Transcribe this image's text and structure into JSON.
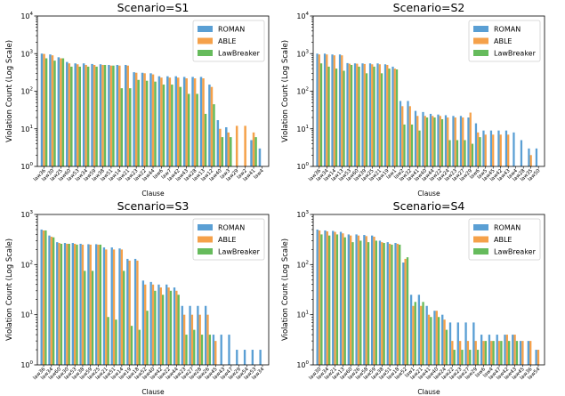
{
  "colors": {
    "ROMAN": "#5a9fd4",
    "ABLE": "#f5a14a",
    "LawBreaker": "#66bb5c"
  },
  "chart_data": [
    {
      "type": "bar",
      "title": "Scenario=S1",
      "xlabel": "Clause",
      "ylabel": "Violation Count (Log Scale)",
      "yscale": "log",
      "ylim": [
        1,
        10000
      ],
      "yticks": [
        "10^0",
        "10^1",
        "10^2",
        "10^3",
        "10^4"
      ],
      "legend": {
        "position": "top-right",
        "entries": [
          "ROMAN",
          "ABLE",
          "LawBreaker"
        ]
      },
      "categories": [
        "law36",
        "law30",
        "law25",
        "law60",
        "law53",
        "law34",
        "law59",
        "law38",
        "law51",
        "law14",
        "law21",
        "law23",
        "law22",
        "law44",
        "law6",
        "law7",
        "law42",
        "law43",
        "law28",
        "law13",
        "law12",
        "law40",
        "law3",
        "law29",
        "law2",
        "law41",
        "law4"
      ],
      "series": [
        {
          "name": "ROMAN",
          "values": [
            1000,
            950,
            800,
            600,
            550,
            550,
            530,
            520,
            500,
            500,
            500,
            320,
            310,
            300,
            250,
            250,
            250,
            240,
            240,
            240,
            150,
            17,
            11,
            1,
            1,
            5,
            3
          ]
        },
        {
          "name": "ABLE",
          "values": [
            980,
            900,
            750,
            550,
            520,
            500,
            500,
            500,
            480,
            480,
            480,
            310,
            300,
            280,
            230,
            230,
            230,
            220,
            220,
            220,
            130,
            10,
            8,
            12,
            12,
            8,
            1
          ]
        },
        {
          "name": "LawBreaker",
          "values": [
            750,
            650,
            750,
            450,
            450,
            450,
            450,
            500,
            480,
            120,
            120,
            200,
            190,
            180,
            150,
            150,
            130,
            85,
            85,
            25,
            45,
            6,
            6,
            1,
            1,
            6,
            1
          ]
        }
      ]
    },
    {
      "type": "bar",
      "title": "Scenario=S2",
      "xlabel": "Clause",
      "ylabel": "Violation Count (Log Scale)",
      "yscale": "log",
      "ylim": [
        1,
        10000
      ],
      "yticks": [
        "10^0",
        "10^1",
        "10^2",
        "10^3",
        "10^4"
      ],
      "legend": {
        "position": "top-right",
        "entries": [
          "ROMAN",
          "ABLE",
          "LawBreaker"
        ]
      },
      "categories": [
        "law36",
        "law34",
        "law14",
        "law13",
        "law53",
        "law60",
        "law39",
        "law25",
        "law21",
        "law19",
        "law1",
        "law2",
        "law32",
        "law41",
        "law40",
        "law44",
        "law22",
        "law24",
        "law23",
        "law27",
        "law29",
        "law6",
        "law5",
        "law45",
        "law42",
        "law43",
        "law4",
        "law28",
        "law35",
        "law50"
      ],
      "series": [
        {
          "name": "ROMAN",
          "values": [
            1000,
            1000,
            950,
            950,
            560,
            550,
            550,
            550,
            550,
            520,
            450,
            55,
            55,
            30,
            28,
            25,
            24,
            23,
            22,
            22,
            20,
            14,
            9,
            9,
            9,
            9,
            8,
            5,
            3,
            3
          ]
        },
        {
          "name": "ABLE",
          "values": [
            950,
            950,
            900,
            900,
            540,
            540,
            530,
            520,
            520,
            500,
            400,
            40,
            40,
            22,
            22,
            22,
            22,
            20,
            20,
            20,
            27,
            8,
            7,
            7,
            7,
            7,
            1,
            1,
            2,
            1
          ]
        },
        {
          "name": "LawBreaker",
          "values": [
            550,
            450,
            400,
            350,
            500,
            450,
            300,
            450,
            300,
            400,
            380,
            13,
            13,
            9,
            20,
            20,
            18,
            5,
            5,
            5,
            4,
            6,
            1,
            1,
            1,
            1,
            1,
            1,
            1,
            1
          ]
        }
      ]
    },
    {
      "type": "bar",
      "title": "Scenario=S3",
      "xlabel": "Clause",
      "ylabel": "Violation Count (Log Scale)",
      "yscale": "log",
      "ylim": [
        1,
        1000
      ],
      "yticks": [
        "10^0",
        "10^1",
        "10^2",
        "10^3"
      ],
      "legend": {
        "position": "top-right",
        "entries": [
          "ROMAN",
          "ABLE",
          "LawBreaker"
        ]
      },
      "categories": [
        "law36",
        "law34",
        "law60",
        "law30",
        "law53",
        "law38",
        "law59",
        "law25",
        "law21",
        "law51",
        "law14",
        "law19",
        "law18",
        "law52",
        "law40",
        "law42",
        "law22",
        "law44",
        "law23",
        "law27",
        "law28",
        "law26",
        "law45",
        "law43",
        "law47",
        "law29",
        "law54",
        "law53",
        "law34"
      ],
      "series": [
        {
          "name": "ROMAN",
          "values": [
            500,
            380,
            280,
            270,
            270,
            260,
            255,
            255,
            220,
            220,
            210,
            130,
            130,
            48,
            45,
            40,
            40,
            35,
            15,
            15,
            15,
            15,
            4,
            4,
            4,
            2,
            2,
            2,
            2
          ]
        },
        {
          "name": "ABLE",
          "values": [
            480,
            360,
            270,
            260,
            260,
            250,
            250,
            250,
            200,
            200,
            200,
            120,
            120,
            40,
            40,
            35,
            35,
            30,
            10,
            10,
            10,
            10,
            3,
            1,
            1,
            1,
            1,
            1,
            1
          ]
        },
        {
          "name": "LawBreaker",
          "values": [
            480,
            350,
            260,
            260,
            250,
            75,
            75,
            250,
            9,
            8,
            75,
            6,
            5,
            12,
            30,
            25,
            30,
            25,
            4,
            5,
            4,
            4,
            1,
            1,
            1,
            1,
            1,
            1,
            1
          ]
        }
      ]
    },
    {
      "type": "bar",
      "title": "Scenario=S4",
      "xlabel": "Clause",
      "ylabel": "Violation Count (Log Scale)",
      "yscale": "log",
      "ylim": [
        1,
        1000
      ],
      "yticks": [
        "10^0",
        "10^1",
        "10^2",
        "10^3"
      ],
      "legend": {
        "position": "top-right",
        "entries": [
          "ROMAN",
          "ABLE",
          "LawBreaker"
        ]
      },
      "categories": [
        "law30",
        "law34",
        "law21",
        "law13",
        "law60",
        "law26",
        "law58",
        "law59",
        "law38",
        "law51",
        "law18",
        "law52",
        "law1",
        "law21",
        "law41",
        "law40",
        "law24",
        "law22",
        "law23",
        "law27",
        "law29",
        "law6",
        "law4",
        "law47",
        "law42",
        "law43",
        "law45",
        "law36",
        "law54"
      ],
      "series": [
        {
          "name": "ROMAN",
          "values": [
            500,
            480,
            470,
            450,
            400,
            400,
            390,
            380,
            300,
            280,
            270,
            110,
            25,
            25,
            15,
            12,
            10,
            7,
            7,
            7,
            7,
            4,
            4,
            4,
            4,
            4,
            3,
            3,
            2
          ]
        },
        {
          "name": "ABLE",
          "values": [
            480,
            460,
            450,
            420,
            380,
            380,
            370,
            360,
            280,
            260,
            260,
            130,
            15,
            15,
            10,
            12,
            8,
            3,
            3,
            3,
            3,
            3,
            3,
            3,
            4,
            4,
            3,
            3,
            2
          ]
        },
        {
          "name": "LawBreaker",
          "values": [
            400,
            380,
            400,
            350,
            280,
            300,
            280,
            300,
            270,
            250,
            250,
            140,
            18,
            18,
            9,
            9,
            5,
            2,
            2,
            2,
            2,
            3,
            3,
            3,
            3,
            3,
            1,
            1,
            1
          ]
        }
      ]
    }
  ]
}
